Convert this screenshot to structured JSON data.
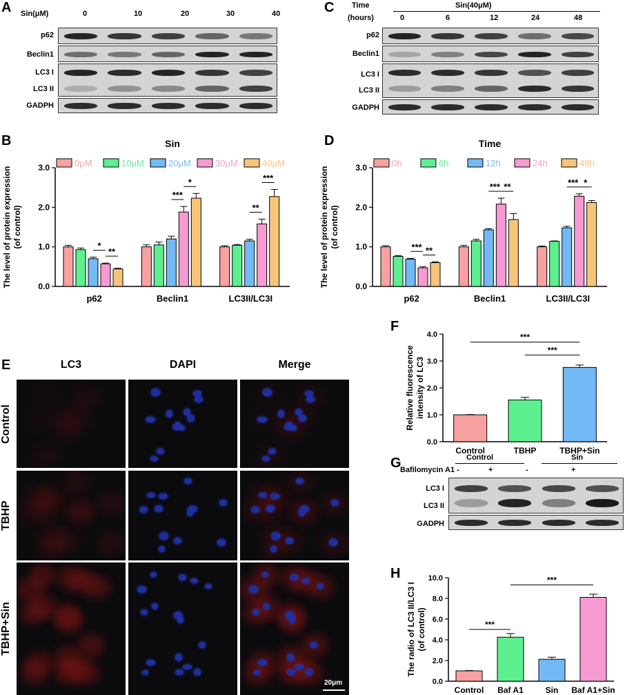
{
  "panels": {
    "A": {
      "letter": "A",
      "dose_header": "Sin(μM)",
      "doses": [
        "0",
        "10",
        "20",
        "30",
        "40"
      ],
      "rows": [
        "p62",
        "Beclin1",
        "LC3 I",
        "LC3 II",
        "GADPH"
      ]
    },
    "C": {
      "letter": "C",
      "time_header": "Time",
      "hours_header": "(hours)",
      "group_label": "Sin(40μM)",
      "times": [
        "0",
        "6",
        "12",
        "24",
        "48"
      ],
      "rows": [
        "p62",
        "Beclin1",
        "LC3 I",
        "LC3 II",
        "GADPH"
      ]
    },
    "E": {
      "letter": "E",
      "columns": [
        "LC3",
        "DAPI",
        "Merge"
      ],
      "rows": [
        "Control",
        "TBHP",
        "TBHP+Sin"
      ],
      "scale_bar": "20μm"
    },
    "G": {
      "letter": "G",
      "group1": "Control",
      "group2": "Sin",
      "baf_label": "Bafilomycin A1",
      "baf_states": [
        "-",
        "+",
        "-",
        "+"
      ],
      "rows": [
        "LC3 I",
        "LC3 II",
        "GADPH"
      ]
    }
  },
  "colors": {
    "c0": "#f7a1a1",
    "c1": "#5cf08f",
    "c2": "#72b9f5",
    "c3": "#f79ad3",
    "c4": "#f7c57a"
  },
  "chart_data": [
    {
      "id": "B",
      "letter": "B",
      "type": "bar",
      "legend_title": "Sin",
      "ylabel": "The level of protein expression (of control)",
      "ylabel_lines": [
        "The level of protein expression",
        "(of control)"
      ],
      "ylim": [
        0,
        3.0
      ],
      "yticks": [
        "0.0",
        "1.0",
        "2.0",
        "3.0"
      ],
      "categories": [
        "p62",
        "Beclin1",
        "LC3II/LC3I"
      ],
      "series": [
        {
          "name": "0μM",
          "values": [
            1.0,
            1.0,
            1.0
          ],
          "errors": [
            0.04,
            0.05,
            0.03
          ]
        },
        {
          "name": "10μM",
          "values": [
            0.93,
            1.05,
            1.04
          ],
          "errors": [
            0.04,
            0.07,
            0.02
          ]
        },
        {
          "name": "20μM",
          "values": [
            0.7,
            1.2,
            1.15
          ],
          "errors": [
            0.04,
            0.07,
            0.04
          ]
        },
        {
          "name": "30μM",
          "values": [
            0.57,
            1.88,
            1.58
          ],
          "errors": [
            0.02,
            0.14,
            0.12
          ]
        },
        {
          "name": "40μM",
          "values": [
            0.44,
            2.23,
            2.27
          ],
          "errors": [
            0.02,
            0.12,
            0.18
          ]
        }
      ],
      "significance": [
        {
          "cat": 0,
          "from": 2,
          "to": 3,
          "label": "*"
        },
        {
          "cat": 0,
          "from": 3,
          "to": 4,
          "label": "**"
        },
        {
          "cat": 1,
          "from": 2,
          "to": 3,
          "label": "***"
        },
        {
          "cat": 1,
          "from": 3,
          "to": 4,
          "label": "*"
        },
        {
          "cat": 2,
          "from": 2,
          "to": 3,
          "label": "**"
        },
        {
          "cat": 2,
          "from": 3,
          "to": 4,
          "label": "***"
        }
      ]
    },
    {
      "id": "D",
      "letter": "D",
      "type": "bar",
      "legend_title": "Time",
      "ylabel": "The level of protein expression (of control)",
      "ylabel_lines": [
        "The level of protein expression",
        "(of control)"
      ],
      "ylim": [
        0,
        3.0
      ],
      "yticks": [
        "0.0",
        "1.0",
        "2.0",
        "3.0"
      ],
      "categories": [
        "p62",
        "Beclin1",
        "LC3II/LC3I"
      ],
      "series": [
        {
          "name": "0h",
          "values": [
            1.0,
            1.0,
            1.0
          ],
          "errors": [
            0.03,
            0.04,
            0.02
          ]
        },
        {
          "name": "6h",
          "values": [
            0.76,
            1.15,
            1.14
          ],
          "errors": [
            0.02,
            0.04,
            0.01
          ]
        },
        {
          "name": "12h",
          "values": [
            0.69,
            1.43,
            1.48
          ],
          "errors": [
            0.02,
            0.03,
            0.04
          ]
        },
        {
          "name": "24h",
          "values": [
            0.47,
            2.08,
            2.28
          ],
          "errors": [
            0.03,
            0.15,
            0.06
          ]
        },
        {
          "name": "48h",
          "values": [
            0.6,
            1.69,
            2.12
          ],
          "errors": [
            0.02,
            0.15,
            0.05
          ]
        }
      ],
      "significance": [
        {
          "cat": 0,
          "from": 2,
          "to": 3,
          "label": "***"
        },
        {
          "cat": 0,
          "from": 3,
          "to": 4,
          "label": "**"
        },
        {
          "cat": 1,
          "from": 2,
          "to": 3,
          "label": "***"
        },
        {
          "cat": 1,
          "from": 3,
          "to": 4,
          "label": "**"
        },
        {
          "cat": 2,
          "from": 2,
          "to": 3,
          "label": "***"
        },
        {
          "cat": 2,
          "from": 3,
          "to": 4,
          "label": "*"
        }
      ]
    },
    {
      "id": "F",
      "letter": "F",
      "type": "bar",
      "ylabel": "Relative fluorescence intensity of LC3",
      "ylabel_lines": [
        "Relative fluorescence",
        "intensity of LC3"
      ],
      "ylim": [
        0,
        4.0
      ],
      "yticks": [
        "0.0",
        "1.0",
        "2.0",
        "3.0",
        "4.0"
      ],
      "categories": [
        "Control",
        "TBHP",
        "TBHP+Sin"
      ],
      "values": [
        1.0,
        1.55,
        2.76
      ],
      "errors": [
        0.01,
        0.1,
        0.09
      ],
      "significance": [
        {
          "from": 0,
          "to": 2,
          "label": "***"
        },
        {
          "from": 1,
          "to": 2,
          "label": "***"
        }
      ]
    },
    {
      "id": "H",
      "letter": "H",
      "type": "bar",
      "ylabel": "The radio of LC3 II/LC3 I (of control)",
      "ylabel_lines": [
        "The radio of LC3 II/LC3 I",
        "(of control)"
      ],
      "ylim": [
        0,
        10.0
      ],
      "yticks": [
        "0.0",
        "2.0",
        "4.0",
        "6.0",
        "8.0",
        "10.0"
      ],
      "categories": [
        "Control",
        "Baf A1",
        "Sin",
        "Baf A1+Sin"
      ],
      "values": [
        1.0,
        4.25,
        2.12,
        8.1
      ],
      "errors": [
        0.03,
        0.35,
        0.2,
        0.3
      ],
      "significance": [
        {
          "from": 0,
          "to": 1,
          "label": "***"
        },
        {
          "from": 1,
          "to": 3,
          "label": "***"
        }
      ]
    }
  ]
}
